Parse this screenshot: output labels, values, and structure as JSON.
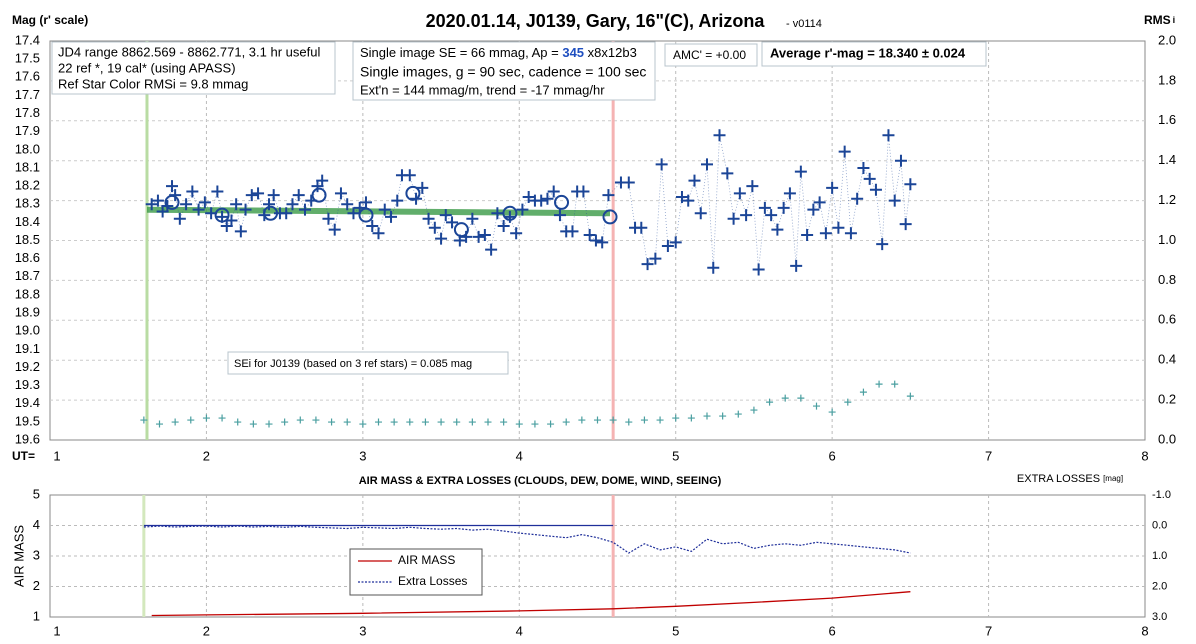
{
  "chart_data": [
    {
      "type": "scatter",
      "title": "2020.01.14, J0139, Gary, 16\"(C), Arizona",
      "subtitle": "- v0114",
      "ylabel": "Mag (r' scale)",
      "y2label": "RMS",
      "y2label_sub": "i",
      "xlabel": "UT=",
      "xlim": [
        1,
        8
      ],
      "xticks": [
        1,
        2,
        3,
        4,
        5,
        6,
        7,
        8
      ],
      "ylim": [
        19.6,
        17.4
      ],
      "yticks": [
        17.4,
        17.5,
        17.6,
        17.7,
        17.8,
        17.9,
        {
          "value": 18,
          "label": "18.0"
        },
        18.1,
        18.2,
        18.3,
        18.4,
        18.5,
        18.6,
        18.7,
        18.8,
        18.9,
        {
          "value": 19,
          "label": "19.0"
        },
        19.1,
        19.2,
        19.3,
        19.4,
        19.5,
        19.6
      ],
      "y2lim": [
        0,
        2
      ],
      "y2ticks": [
        {
          "value": 0,
          "label": "0.0"
        },
        0.2,
        0.4,
        0.6,
        0.8,
        {
          "value": 1,
          "label": "1.0"
        },
        1.2,
        1.4,
        1.6,
        1.8,
        {
          "value": 2,
          "label": "2.0"
        }
      ],
      "grid": true,
      "vlines": [
        {
          "x": 1.62,
          "color": "#b9dca3"
        },
        {
          "x": 4.6,
          "color": "#f5b3b3"
        }
      ],
      "series": [
        {
          "style": "band",
          "color": "#3a9a46",
          "x": [
            1.62,
            4.58
          ],
          "values": [
            18.33,
            18.35
          ]
        },
        {
          "style": "cross",
          "color": "#1b4597",
          "x": [
            1.65,
            1.69,
            1.72,
            1.75,
            1.78,
            1.8,
            1.83,
            1.87,
            1.91,
            1.95,
            1.99,
            2.03,
            2.07,
            2.1,
            2.13,
            2.16,
            2.19,
            2.22,
            2.25,
            2.29,
            2.33,
            2.37,
            2.4,
            2.43,
            2.47,
            2.51,
            2.55,
            2.59,
            2.63,
            2.67,
            2.71,
            2.74,
            2.78,
            2.82,
            2.86,
            2.9,
            2.94,
            2.98,
            3.02,
            3.06,
            3.1,
            3.14,
            3.18,
            3.22,
            3.25,
            3.3,
            3.34,
            3.38,
            3.42,
            3.46,
            3.5,
            3.53,
            3.57,
            3.62,
            3.66,
            3.7,
            3.74,
            3.78,
            3.82,
            3.86,
            3.9,
            3.94,
            3.98,
            4.02,
            4.06,
            4.1,
            4.14,
            4.18,
            4.22,
            4.26,
            4.3,
            4.34,
            4.37,
            4.41,
            4.45,
            4.49,
            4.53,
            4.57,
            4.65,
            4.7,
            4.74,
            4.78,
            4.82,
            4.87,
            4.91,
            4.95,
            5.0,
            5.04,
            5.08,
            5.12,
            5.16,
            5.2,
            5.24,
            5.28,
            5.33,
            5.37,
            5.41,
            5.45,
            5.49,
            5.53,
            5.57,
            5.61,
            5.65,
            5.69,
            5.73,
            5.77,
            5.8,
            5.84,
            5.88,
            5.92,
            5.96,
            6.0,
            6.04,
            6.08,
            6.12,
            6.16,
            6.2,
            6.24,
            6.28,
            6.32,
            6.36,
            6.4,
            6.44,
            6.47,
            6.5
          ],
          "values": [
            18.3,
            18.28,
            18.34,
            18.31,
            18.2,
            18.25,
            18.38,
            18.3,
            18.23,
            18.33,
            18.29,
            18.35,
            18.23,
            18.37,
            18.42,
            18.39,
            18.3,
            18.45,
            18.33,
            18.25,
            18.24,
            18.36,
            18.3,
            18.25,
            18.35,
            18.35,
            18.3,
            18.25,
            18.33,
            18.28,
            18.2,
            18.17,
            18.38,
            18.44,
            18.24,
            18.3,
            18.35,
            18.32,
            18.29,
            18.42,
            18.46,
            18.33,
            18.37,
            18.28,
            18.14,
            18.14,
            18.27,
            18.21,
            18.38,
            18.43,
            18.49,
            18.36,
            18.4,
            18.5,
            18.48,
            18.38,
            18.48,
            18.47,
            18.55,
            18.35,
            18.42,
            18.37,
            18.46,
            18.33,
            18.26,
            18.28,
            18.28,
            18.27,
            18.23,
            18.36,
            18.45,
            18.45,
            18.23,
            18.23,
            18.47,
            18.5,
            18.51,
            18.25,
            18.18,
            18.18,
            18.43,
            18.43,
            18.63,
            18.6,
            18.08,
            18.53,
            18.51,
            18.26,
            18.28,
            18.17,
            18.35,
            18.08,
            18.65,
            17.92,
            18.13,
            18.38,
            18.24,
            18.36,
            18.2,
            18.66,
            18.32,
            18.36,
            18.44,
            18.32,
            18.24,
            18.64,
            18.12,
            18.47,
            18.33,
            18.29,
            18.46,
            18.21,
            18.43,
            18.01,
            18.46,
            18.27,
            18.1,
            18.16,
            18.22,
            18.52,
            17.92,
            18.28,
            18.06,
            18.41,
            18.19
          ]
        },
        {
          "style": "circle",
          "color": "#1b4597",
          "x": [
            1.78,
            2.1,
            2.41,
            2.72,
            3.02,
            3.32,
            3.63,
            3.94,
            4.27,
            4.58
          ],
          "values": [
            18.29,
            18.36,
            18.35,
            18.25,
            18.36,
            18.24,
            18.44,
            18.35,
            18.29,
            18.37
          ]
        },
        {
          "style": "small-cross",
          "color": "#4a9fa0",
          "axis": "y2",
          "x": [
            1.6,
            1.7,
            1.8,
            1.9,
            2.0,
            2.1,
            2.2,
            2.3,
            2.4,
            2.5,
            2.6,
            2.7,
            2.8,
            2.9,
            3.0,
            3.1,
            3.2,
            3.3,
            3.4,
            3.5,
            3.6,
            3.7,
            3.8,
            3.9,
            4.0,
            4.1,
            4.2,
            4.3,
            4.4,
            4.5,
            4.6,
            4.7,
            4.8,
            4.9,
            5.0,
            5.1,
            5.2,
            5.3,
            5.4,
            5.5,
            5.6,
            5.7,
            5.8,
            5.9,
            6.0,
            6.1,
            6.2,
            6.3,
            6.4,
            6.5
          ],
          "values": [
            0.1,
            0.08,
            0.09,
            0.1,
            0.11,
            0.11,
            0.09,
            0.08,
            0.08,
            0.09,
            0.1,
            0.1,
            0.09,
            0.09,
            0.08,
            0.09,
            0.09,
            0.09,
            0.09,
            0.09,
            0.09,
            0.09,
            0.09,
            0.09,
            0.08,
            0.08,
            0.08,
            0.09,
            0.1,
            0.1,
            0.1,
            0.09,
            0.1,
            0.1,
            0.11,
            0.11,
            0.12,
            0.12,
            0.13,
            0.15,
            0.19,
            0.21,
            0.21,
            0.17,
            0.14,
            0.19,
            0.24,
            0.28,
            0.28,
            0.22
          ]
        }
      ]
    },
    {
      "type": "line",
      "title": "AIR MASS & EXTRA LOSSES (CLOUDS, DEW, DOME, WIND, SEEING)",
      "ylabel": "AIR MASS",
      "y2label": "EXTRA LOSSES",
      "y2label_unit": "[mag]",
      "xlim": [
        1,
        8
      ],
      "xticks": [
        1,
        2,
        3,
        4,
        5,
        6,
        7,
        8
      ],
      "ylim": [
        1,
        5
      ],
      "yticks": [
        1,
        2,
        3,
        4,
        5
      ],
      "y2lim": [
        3,
        -1
      ],
      "y2ticks": [
        {
          "value": -1,
          "label": "-1.0"
        },
        {
          "value": 0,
          "label": "0.0"
        },
        {
          "value": 1,
          "label": "1.0"
        },
        {
          "value": 2,
          "label": "2.0"
        },
        {
          "value": 3,
          "label": "3.0"
        }
      ],
      "grid": true,
      "vlines": [
        {
          "x": 1.6,
          "color": "#d3e8bd"
        },
        {
          "x": 4.6,
          "color": "#f5b3b3"
        }
      ],
      "series": [
        {
          "name": "AIR MASS",
          "style": "line",
          "color": "#c00000",
          "x": [
            1.65,
            2.0,
            3.0,
            4.0,
            4.6,
            5.0,
            5.5,
            6.0,
            6.5
          ],
          "values": [
            1.05,
            1.07,
            1.12,
            1.2,
            1.27,
            1.35,
            1.48,
            1.62,
            1.83
          ]
        },
        {
          "name": "Extra Losses",
          "style": "dotted",
          "color": "#1f2f9a",
          "axis": "y2",
          "x": [
            1.6,
            1.7,
            1.8,
            1.9,
            2.0,
            2.1,
            2.2,
            2.3,
            2.4,
            2.5,
            2.6,
            2.7,
            2.8,
            2.9,
            3.0,
            3.1,
            3.2,
            3.3,
            3.4,
            3.5,
            3.6,
            3.7,
            3.8,
            3.9,
            4.0,
            4.1,
            4.2,
            4.3,
            4.4,
            4.5,
            4.6,
            4.7,
            4.8,
            4.9,
            5.0,
            5.1,
            5.2,
            5.3,
            5.4,
            5.5,
            5.6,
            5.7,
            5.8,
            5.9,
            6.0,
            6.1,
            6.2,
            6.3,
            6.4,
            6.5
          ],
          "values": [
            0.05,
            0.02,
            0.05,
            0.03,
            0.02,
            0.05,
            0.02,
            0.05,
            0.03,
            0.06,
            0.03,
            0.06,
            0.08,
            0.1,
            0.06,
            0.08,
            0.1,
            0.06,
            0.1,
            0.12,
            0.1,
            0.15,
            0.12,
            0.18,
            0.25,
            0.3,
            0.35,
            0.4,
            0.3,
            0.4,
            0.55,
            0.9,
            0.6,
            0.8,
            0.7,
            0.85,
            0.45,
            0.6,
            0.55,
            0.75,
            0.65,
            0.6,
            0.65,
            0.55,
            0.6,
            0.65,
            0.7,
            0.75,
            0.8,
            0.9
          ]
        },
        {
          "style": "line",
          "color": "#1f2f9a",
          "axis": "y2",
          "x": [
            1.6,
            4.6
          ],
          "values": [
            0,
            0
          ]
        }
      ]
    }
  ],
  "annotations": {
    "box1": [
      "JD4 range 8862.569 - 8862.771, 3.1 hr useful",
      "22 ref *, 19 cal* (using APASS)",
      "Ref Star Color RMSi = 9.8 mmag"
    ],
    "box2_line1": [
      "Single image SE = 66 mmag, Ap = ",
      "345",
      " x8x12b3"
    ],
    "box2": [
      "Single images, g = 90 sec, cadence = 100 sec",
      "Ext'n = 144 mmag/m, trend = -17 mmag/hr"
    ],
    "amc": "AMC' = +0.00",
    "average": "Average r'-mag =  18.340 ± 0.024",
    "sei": "SEi for J0139 (based on 3 ref stars) = 0.085 mag"
  }
}
